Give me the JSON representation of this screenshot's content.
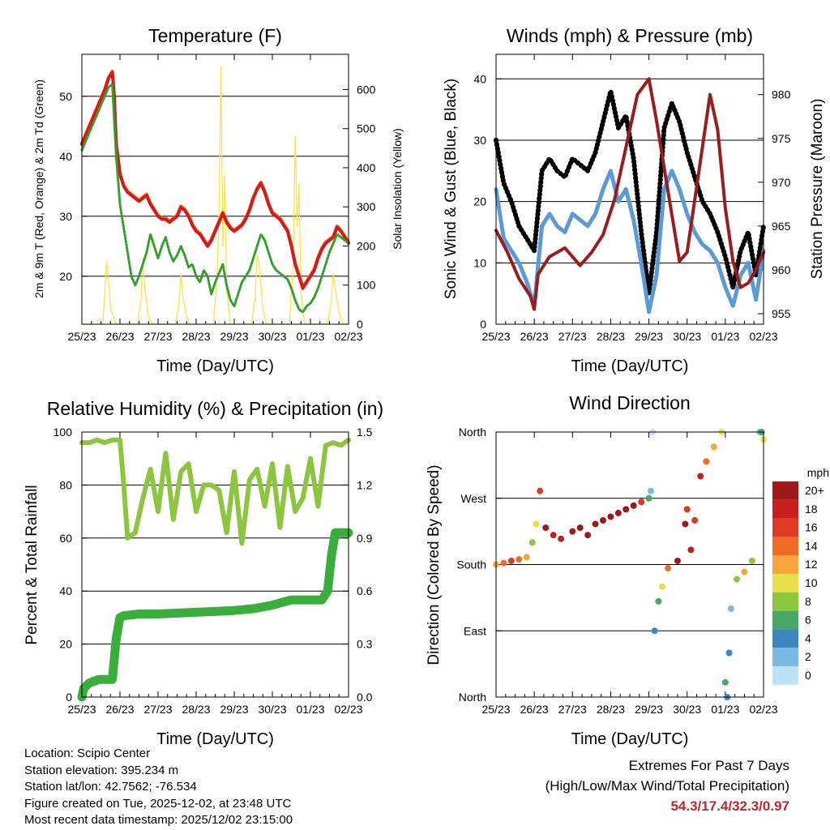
{
  "chart_data": [
    {
      "type": "line",
      "title": "Temperature (F)",
      "xlabel": "Time (Day/UTC)",
      "ylabel": "2m & 9m T (Red, Orange) & 2m Td (Green)",
      "y2label": "Solar Insolation (Yellow)",
      "xticks": [
        "25/23",
        "26/23",
        "27/23",
        "28/23",
        "29/23",
        "30/23",
        "01/23",
        "02/23"
      ],
      "xlim": [
        0,
        7
      ],
      "ylim": [
        12,
        57
      ],
      "yticks": [
        20,
        30,
        40,
        50
      ],
      "y2lim": [
        0,
        690
      ],
      "y2ticks": [
        0,
        100,
        200,
        300,
        400,
        500,
        600
      ],
      "colors": {
        "t2m": "#d7191c",
        "t9m": "#f08c2a",
        "td": "#33a02c",
        "solar": "#fde34a"
      },
      "series": [
        {
          "name": "2m T",
          "axis": "left",
          "x": [
            0,
            0.1,
            0.2,
            0.3,
            0.4,
            0.5,
            0.6,
            0.7,
            0.8,
            0.85,
            0.9,
            0.95,
            1.0,
            1.1,
            1.2,
            1.3,
            1.4,
            1.5,
            1.6,
            1.7,
            1.8,
            1.9,
            2.0,
            2.1,
            2.2,
            2.3,
            2.4,
            2.5,
            2.6,
            2.7,
            2.8,
            2.9,
            3.0,
            3.1,
            3.2,
            3.3,
            3.4,
            3.5,
            3.6,
            3.7,
            3.8,
            3.9,
            4.0,
            4.1,
            4.2,
            4.3,
            4.4,
            4.5,
            4.6,
            4.7,
            4.8,
            4.9,
            5.0,
            5.1,
            5.2,
            5.3,
            5.4,
            5.5,
            5.6,
            5.7,
            5.8,
            5.9,
            6.0,
            6.1,
            6.2,
            6.3,
            6.4,
            6.5,
            6.6,
            6.7,
            6.8,
            6.9,
            7.0
          ],
          "values": [
            42,
            43.5,
            45,
            46.5,
            48,
            49.5,
            51,
            53,
            54,
            50,
            42,
            39.5,
            37,
            35,
            34,
            33.5,
            33,
            32.5,
            33,
            33.5,
            32,
            31,
            30,
            29.5,
            29.5,
            29,
            29.5,
            30,
            31.5,
            31,
            30,
            28.5,
            27.5,
            27,
            26,
            25,
            26,
            27.5,
            29,
            30.5,
            29,
            28,
            27.5,
            28,
            28.5,
            29.5,
            31,
            33,
            34.5,
            35.5,
            34,
            32,
            30.5,
            30,
            29.5,
            28.5,
            27.5,
            25,
            22,
            20,
            18,
            19,
            20,
            21,
            23,
            24.5,
            25.5,
            26,
            26.5,
            28.2,
            27.5,
            26.5,
            25.5
          ]
        },
        {
          "name": "2m Td",
          "axis": "left",
          "x": [
            0,
            0.1,
            0.2,
            0.3,
            0.4,
            0.5,
            0.6,
            0.7,
            0.8,
            0.85,
            0.9,
            0.95,
            1.0,
            1.1,
            1.2,
            1.3,
            1.4,
            1.5,
            1.6,
            1.7,
            1.8,
            1.9,
            2.0,
            2.1,
            2.2,
            2.3,
            2.4,
            2.5,
            2.6,
            2.7,
            2.8,
            2.9,
            3.0,
            3.1,
            3.2,
            3.3,
            3.4,
            3.5,
            3.6,
            3.7,
            3.8,
            3.9,
            4.0,
            4.1,
            4.2,
            4.3,
            4.4,
            4.5,
            4.6,
            4.7,
            4.8,
            4.9,
            5.0,
            5.1,
            5.2,
            5.3,
            5.4,
            5.5,
            5.6,
            5.7,
            5.8,
            5.9,
            6.0,
            6.1,
            6.2,
            6.3,
            6.4,
            6.5,
            6.6,
            6.7,
            6.8,
            6.9,
            7.0
          ],
          "values": [
            41,
            42.5,
            44,
            45.5,
            47,
            48.5,
            50,
            51.5,
            52,
            46,
            40,
            36,
            32,
            28,
            24,
            20,
            18.5,
            20,
            22,
            24,
            27,
            25,
            23,
            25,
            26.5,
            24,
            22.5,
            23.5,
            25,
            23.5,
            21.5,
            22,
            20,
            19,
            21,
            20,
            17,
            19,
            20.5,
            22,
            18.5,
            16,
            15,
            17,
            19,
            20,
            21,
            23,
            25,
            27,
            26,
            24,
            22,
            21,
            20.5,
            20,
            19.5,
            18,
            16,
            14.5,
            14,
            15,
            15.5,
            16.5,
            18,
            20,
            22,
            24,
            25.5,
            27,
            26.5,
            26,
            25.5
          ]
        },
        {
          "name": "Solar Insolation",
          "axis": "right",
          "x": [
            0,
            0.55,
            0.6,
            0.65,
            0.7,
            0.75,
            0.9,
            1.45,
            1.55,
            1.6,
            1.65,
            1.75,
            1.85,
            2.45,
            2.55,
            2.6,
            2.65,
            2.75,
            2.85,
            3.45,
            3.55,
            3.6,
            3.65,
            3.7,
            3.75,
            3.8,
            3.9,
            4.45,
            4.55,
            4.6,
            4.65,
            4.75,
            4.85,
            5.45,
            5.55,
            5.6,
            5.65,
            5.7,
            5.75,
            5.85,
            6.45,
            6.55,
            6.6,
            6.65,
            6.75,
            6.85,
            7.0
          ],
          "values": [
            0,
            0,
            80,
            160,
            110,
            40,
            0,
            0,
            60,
            170,
            90,
            20,
            0,
            0,
            50,
            130,
            70,
            20,
            0,
            0,
            120,
            300,
            660,
            200,
            380,
            90,
            0,
            0,
            70,
            180,
            150,
            40,
            0,
            0,
            160,
            480,
            250,
            360,
            80,
            0,
            0,
            60,
            130,
            90,
            30,
            0,
            0
          ]
        }
      ]
    },
    {
      "type": "line",
      "title": "Winds (mph) & Pressure (mb)",
      "xlabel": "Time (Day/UTC)",
      "ylabel": "Sonic Wind & Gust (Blue, Black)",
      "y2label": "Station Pressure (Maroon)",
      "xticks": [
        "25/23",
        "26/23",
        "27/23",
        "28/23",
        "29/23",
        "30/23",
        "01/23",
        "02/23"
      ],
      "xlim": [
        0,
        7
      ],
      "ylim": [
        0,
        44
      ],
      "yticks": [
        0,
        10,
        20,
        30,
        40
      ],
      "y2lim": [
        953.8,
        984.6
      ],
      "y2ticks": [
        955,
        960,
        965,
        970,
        975,
        980
      ],
      "colors": {
        "wind": "#5a9bd5",
        "gust": "#000000",
        "pressure": "#9b1c1c"
      },
      "series": [
        {
          "name": "Sonic Wind",
          "axis": "left",
          "x": [
            0,
            0.2,
            0.4,
            0.6,
            0.8,
            1.0,
            1.2,
            1.4,
            1.6,
            1.8,
            2.0,
            2.2,
            2.4,
            2.6,
            2.8,
            3.0,
            3.2,
            3.4,
            3.6,
            3.8,
            4.0,
            4.2,
            4.4,
            4.6,
            4.8,
            5.0,
            5.2,
            5.4,
            5.6,
            5.8,
            6.0,
            6.2,
            6.4,
            6.6,
            6.8,
            7.0
          ],
          "values": [
            22,
            14,
            12,
            10,
            7,
            3,
            16,
            18,
            16,
            15,
            18,
            17,
            16,
            18,
            22,
            25,
            20,
            22,
            17,
            10,
            2,
            8,
            22,
            25,
            22,
            18,
            15,
            13,
            12,
            10,
            6,
            3,
            8,
            10,
            4,
            12
          ]
        },
        {
          "name": "Gust",
          "axis": "left",
          "x": [
            0,
            0.2,
            0.4,
            0.6,
            0.8,
            1.0,
            1.2,
            1.4,
            1.6,
            1.8,
            2.0,
            2.2,
            2.4,
            2.6,
            2.8,
            3.0,
            3.2,
            3.4,
            3.6,
            3.8,
            4.0,
            4.2,
            4.4,
            4.6,
            4.8,
            5.0,
            5.2,
            5.4,
            5.6,
            5.8,
            6.0,
            6.2,
            6.4,
            6.6,
            6.8,
            7.0
          ],
          "values": [
            30,
            23,
            20,
            16,
            14,
            12,
            25,
            27,
            25,
            24,
            27,
            26,
            25,
            28,
            33,
            38,
            32,
            34,
            27,
            15,
            5,
            15,
            32,
            36,
            33,
            28,
            24,
            20,
            18,
            15,
            11,
            6,
            12,
            15,
            8,
            16
          ]
        },
        {
          "name": "Station Pressure",
          "axis": "right",
          "x": [
            0,
            0.3,
            0.6,
            0.9,
            1.0,
            1.1,
            1.4,
            1.8,
            2.0,
            2.2,
            2.5,
            2.8,
            3.1,
            3.4,
            3.7,
            4.0,
            4.2,
            4.5,
            4.8,
            5.0,
            5.3,
            5.6,
            5.8,
            6.0,
            6.2,
            6.4,
            6.6,
            6.8,
            7.0
          ],
          "values": [
            964.5,
            962,
            959,
            957,
            955.5,
            959.5,
            961.5,
            962.5,
            961.5,
            960.5,
            962,
            964,
            968,
            974,
            980,
            981.8,
            977,
            969,
            961,
            962,
            971,
            980,
            976,
            967,
            961,
            958,
            958.5,
            960,
            962
          ]
        }
      ]
    },
    {
      "type": "line",
      "title": "Relative Humidity (%) & Precipitation (in)",
      "xlabel": "Time (Day/UTC)",
      "ylabel": "Percent & Total Rainfall",
      "xticks": [
        "25/23",
        "26/23",
        "27/23",
        "28/23",
        "29/23",
        "30/23",
        "01/23",
        "02/23"
      ],
      "xlim": [
        0,
        7
      ],
      "ylim": [
        0,
        100
      ],
      "yticks": [
        0,
        20,
        40,
        60,
        80,
        100
      ],
      "y2lim": [
        0,
        1.5
      ],
      "y2ticks": [
        "0.0",
        "0.3",
        "0.6",
        "0.9",
        "1.2",
        "1.5"
      ],
      "colors": {
        "rh": "#8cc63f",
        "precip": "#3aae3a"
      },
      "series": [
        {
          "name": "Relative Humidity",
          "axis": "left",
          "x": [
            0,
            0.2,
            0.4,
            0.6,
            0.8,
            1.0,
            1.1,
            1.2,
            1.4,
            1.6,
            1.8,
            2.0,
            2.2,
            2.4,
            2.6,
            2.8,
            3.0,
            3.2,
            3.4,
            3.6,
            3.8,
            4.0,
            4.2,
            4.4,
            4.6,
            4.8,
            5.0,
            5.2,
            5.4,
            5.6,
            5.8,
            6.0,
            6.2,
            6.4,
            6.6,
            6.8,
            6.9,
            7.0
          ],
          "values": [
            96,
            96,
            97,
            96,
            97,
            97,
            80,
            60,
            62,
            75,
            86,
            70,
            92,
            67,
            85,
            88,
            70,
            80,
            80,
            78,
            62,
            85,
            58,
            82,
            86,
            72,
            88,
            64,
            87,
            70,
            75,
            90,
            72,
            95,
            96,
            95,
            96,
            97
          ]
        },
        {
          "name": "Total Precipitation",
          "axis": "right",
          "x": [
            0,
            0.05,
            0.2,
            0.45,
            0.6,
            0.8,
            0.9,
            1.0,
            1.1,
            1.5,
            2.0,
            3.0,
            4.0,
            4.5,
            5.0,
            5.5,
            6.0,
            6.3,
            6.45,
            6.55,
            6.65,
            7.0
          ],
          "values": [
            0,
            0.05,
            0.08,
            0.1,
            0.1,
            0.1,
            0.33,
            0.45,
            0.46,
            0.47,
            0.47,
            0.48,
            0.49,
            0.5,
            0.52,
            0.55,
            0.55,
            0.55,
            0.6,
            0.8,
            0.93,
            0.93
          ]
        }
      ]
    },
    {
      "type": "scatter",
      "title": "Wind Direction",
      "xlabel": "Time (Day/UTC)",
      "ylabel": "Direction (Colored By Speed)",
      "xticks": [
        "25/23",
        "26/23",
        "27/23",
        "28/23",
        "29/23",
        "30/23",
        "01/23",
        "02/23"
      ],
      "xlim": [
        0,
        7
      ],
      "ylim": [
        0,
        360
      ],
      "yticks": [
        {
          "value": 0,
          "label": "North"
        },
        {
          "value": 90,
          "label": "East"
        },
        {
          "value": 180,
          "label": "South"
        },
        {
          "value": 270,
          "label": "West"
        },
        {
          "value": 360,
          "label": "North"
        }
      ],
      "colorbar": {
        "title": "mph",
        "labels": [
          "20+",
          "18",
          "16",
          "14",
          "12",
          "10",
          "8",
          "6",
          "4",
          "2",
          "0"
        ],
        "colors": [
          "#9e1a1a",
          "#c81e1e",
          "#dd3a22",
          "#f06b27",
          "#f8a53a",
          "#e7e04a",
          "#8cc63f",
          "#4aa866",
          "#3f86c0",
          "#79b9e4",
          "#bfe3f6"
        ]
      },
      "series": [
        {
          "name": "Direction",
          "x": [
            0,
            0.2,
            0.4,
            0.6,
            0.8,
            0.95,
            1.05,
            1.15,
            1.3,
            1.5,
            1.7,
            2.0,
            2.2,
            2.4,
            2.6,
            2.8,
            3.0,
            3.2,
            3.4,
            3.6,
            3.8,
            4.0,
            4.05,
            4.1,
            4.15,
            4.25,
            4.35,
            4.5,
            4.75,
            4.95,
            5.0,
            5.1,
            5.2,
            5.35,
            5.5,
            5.7,
            5.9,
            6.0,
            6.05,
            6.1,
            6.15,
            6.3,
            6.5,
            6.7,
            6.9,
            6.95,
            7.0
          ],
          "values": [
            180,
            182,
            185,
            187,
            190,
            210,
            235,
            280,
            230,
            220,
            215,
            225,
            230,
            220,
            235,
            240,
            245,
            250,
            255,
            260,
            265,
            270,
            280,
            360,
            90,
            130,
            150,
            175,
            185,
            235,
            255,
            200,
            240,
            300,
            320,
            340,
            360,
            20,
            0,
            60,
            120,
            160,
            170,
            185,
            360,
            370,
            350
          ],
          "speeds": [
            12,
            14,
            16,
            14,
            12,
            8,
            10,
            16,
            20,
            18,
            18,
            20,
            20,
            20,
            20,
            20,
            20,
            20,
            20,
            20,
            16,
            6,
            2,
            0,
            4,
            6,
            10,
            14,
            20,
            20,
            16,
            18,
            16,
            18,
            14,
            12,
            10,
            6,
            4,
            4,
            2,
            8,
            12,
            8,
            2,
            6,
            10
          ]
        }
      ]
    }
  ],
  "info": {
    "location": "Location: Scipio Center",
    "elevation": "Station elevation: 395.234 m",
    "latlon": "Station lat/lon: 42.7562; -76.534",
    "created": "Figure created on Tue, 2025-12-02, at 23:48 UTC",
    "recent": "Most recent data timestamp: 2025/12/02 23:15:00"
  },
  "extremes": {
    "title": "Extremes For Past 7 Days",
    "subtitle": "(High/Low/Max Wind/Total Precipitation)",
    "values": "54.3/17.4/32.3/0.97"
  }
}
